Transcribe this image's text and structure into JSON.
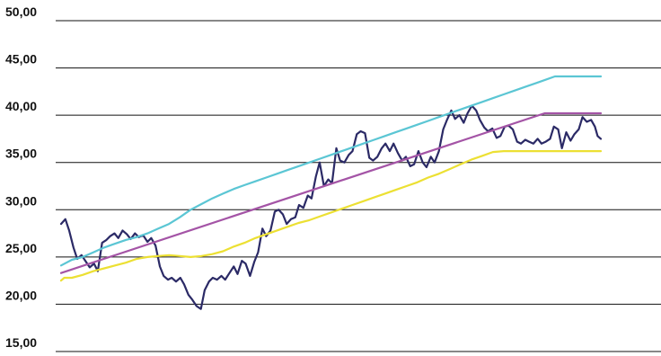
{
  "chart_data": {
    "type": "line",
    "title": "",
    "xlabel": "",
    "ylabel": "",
    "ylim": [
      15,
      50
    ],
    "y_ticks": [
      {
        "value": 50,
        "label": "50,00"
      },
      {
        "value": 45,
        "label": "45,00"
      },
      {
        "value": 40,
        "label": "40,00"
      },
      {
        "value": 35,
        "label": "35,00"
      },
      {
        "value": 30,
        "label": "30,00"
      },
      {
        "value": 25,
        "label": "25,00"
      },
      {
        "value": 20,
        "label": "20,00"
      },
      {
        "value": 15,
        "label": "15,00"
      }
    ],
    "grid": true,
    "legend": "none",
    "x_range": [
      0,
      100
    ],
    "series": [
      {
        "color": "#2b2a66",
        "stroke_width": 2.2,
        "points": [
          [
            0,
            28.5
          ],
          [
            0.8,
            29.0
          ],
          [
            1.5,
            27.8
          ],
          [
            2.3,
            26.0
          ],
          [
            3.0,
            24.8
          ],
          [
            3.8,
            25.2
          ],
          [
            4.5,
            24.6
          ],
          [
            5.3,
            23.9
          ],
          [
            6.1,
            24.3
          ],
          [
            6.8,
            23.5
          ],
          [
            7.6,
            26.5
          ],
          [
            8.4,
            26.8
          ],
          [
            9.1,
            27.2
          ],
          [
            9.9,
            27.5
          ],
          [
            10.6,
            27.0
          ],
          [
            11.4,
            27.8
          ],
          [
            12.2,
            27.4
          ],
          [
            12.9,
            26.9
          ],
          [
            13.7,
            27.5
          ],
          [
            14.4,
            27.1
          ],
          [
            15.2,
            27.3
          ],
          [
            16.0,
            26.6
          ],
          [
            16.7,
            27.0
          ],
          [
            17.5,
            26.2
          ],
          [
            18.3,
            24.0
          ],
          [
            19.0,
            23.0
          ],
          [
            19.8,
            22.6
          ],
          [
            20.5,
            22.8
          ],
          [
            21.3,
            22.4
          ],
          [
            22.1,
            22.8
          ],
          [
            22.8,
            22.1
          ],
          [
            23.6,
            21.0
          ],
          [
            24.3,
            20.5
          ],
          [
            25.1,
            19.8
          ],
          [
            25.9,
            19.5
          ],
          [
            26.6,
            21.5
          ],
          [
            27.4,
            22.4
          ],
          [
            28.1,
            22.8
          ],
          [
            28.9,
            22.6
          ],
          [
            29.7,
            23.0
          ],
          [
            30.4,
            22.6
          ],
          [
            31.2,
            23.3
          ],
          [
            32.0,
            24.0
          ],
          [
            32.7,
            23.2
          ],
          [
            33.5,
            24.6
          ],
          [
            34.2,
            24.3
          ],
          [
            35.0,
            23.0
          ],
          [
            35.8,
            24.5
          ],
          [
            36.5,
            25.5
          ],
          [
            37.3,
            28.0
          ],
          [
            38.0,
            27.2
          ],
          [
            38.8,
            27.8
          ],
          [
            39.6,
            29.8
          ],
          [
            40.3,
            30.0
          ],
          [
            41.1,
            29.5
          ],
          [
            41.8,
            28.5
          ],
          [
            42.6,
            29.0
          ],
          [
            43.4,
            29.2
          ],
          [
            44.1,
            30.5
          ],
          [
            44.9,
            30.2
          ],
          [
            45.7,
            31.5
          ],
          [
            46.4,
            31.2
          ],
          [
            47.2,
            33.5
          ],
          [
            47.9,
            35.0
          ],
          [
            48.7,
            32.5
          ],
          [
            49.5,
            33.2
          ],
          [
            50.2,
            32.8
          ],
          [
            51.0,
            36.5
          ],
          [
            51.7,
            35.2
          ],
          [
            52.5,
            35.0
          ],
          [
            53.3,
            35.8
          ],
          [
            54.0,
            36.2
          ],
          [
            54.8,
            38.0
          ],
          [
            55.5,
            38.3
          ],
          [
            56.3,
            38.1
          ],
          [
            57.1,
            35.5
          ],
          [
            57.8,
            35.2
          ],
          [
            58.6,
            35.6
          ],
          [
            59.4,
            36.5
          ],
          [
            60.1,
            37.0
          ],
          [
            60.9,
            36.2
          ],
          [
            61.6,
            37.0
          ],
          [
            62.4,
            36.0
          ],
          [
            63.2,
            35.2
          ],
          [
            63.9,
            35.6
          ],
          [
            64.7,
            34.6
          ],
          [
            65.4,
            34.8
          ],
          [
            66.2,
            36.2
          ],
          [
            67.0,
            35.0
          ],
          [
            67.7,
            34.5
          ],
          [
            68.5,
            35.6
          ],
          [
            69.2,
            35.0
          ],
          [
            70.0,
            36.2
          ],
          [
            70.8,
            38.5
          ],
          [
            71.5,
            39.5
          ],
          [
            72.3,
            40.5
          ],
          [
            73.0,
            39.6
          ],
          [
            73.8,
            40.0
          ],
          [
            74.6,
            39.2
          ],
          [
            75.3,
            40.2
          ],
          [
            76.1,
            41.0
          ],
          [
            76.9,
            40.5
          ],
          [
            77.6,
            39.5
          ],
          [
            78.4,
            38.7
          ],
          [
            79.1,
            38.3
          ],
          [
            79.9,
            38.6
          ],
          [
            80.7,
            37.6
          ],
          [
            81.4,
            37.8
          ],
          [
            82.2,
            38.8
          ],
          [
            82.9,
            38.9
          ],
          [
            83.7,
            38.5
          ],
          [
            84.5,
            37.2
          ],
          [
            85.2,
            37.0
          ],
          [
            86.0,
            37.4
          ],
          [
            86.7,
            37.2
          ],
          [
            87.5,
            37.0
          ],
          [
            88.3,
            37.5
          ],
          [
            89.0,
            37.0
          ],
          [
            89.8,
            37.2
          ],
          [
            90.6,
            37.5
          ],
          [
            91.3,
            38.8
          ],
          [
            92.1,
            38.5
          ],
          [
            92.8,
            36.5
          ],
          [
            93.6,
            38.2
          ],
          [
            94.4,
            37.3
          ],
          [
            95.1,
            38.0
          ],
          [
            95.9,
            38.5
          ],
          [
            96.6,
            39.8
          ],
          [
            97.4,
            39.3
          ],
          [
            98.2,
            39.5
          ],
          [
            98.9,
            38.8
          ],
          [
            99.4,
            37.8
          ],
          [
            100.0,
            37.5
          ]
        ]
      },
      {
        "color": "#5bc6d4",
        "stroke_width": 2.2,
        "points": [
          [
            0,
            24.1
          ],
          [
            2,
            24.7
          ],
          [
            4,
            25.0
          ],
          [
            6,
            25.5
          ],
          [
            8,
            26.0
          ],
          [
            10,
            26.4
          ],
          [
            12,
            26.8
          ],
          [
            14,
            27.1
          ],
          [
            16,
            27.5
          ],
          [
            18,
            28.0
          ],
          [
            20,
            28.5
          ],
          [
            22,
            29.2
          ],
          [
            24,
            30.0
          ],
          [
            26,
            30.6
          ],
          [
            28,
            31.2
          ],
          [
            30,
            31.7
          ],
          [
            32,
            32.2
          ],
          [
            34,
            32.6
          ],
          [
            36,
            33.0
          ],
          [
            38,
            33.4
          ],
          [
            40,
            33.8
          ],
          [
            42,
            34.2
          ],
          [
            44,
            34.6
          ],
          [
            46,
            35.0
          ],
          [
            48,
            35.4
          ],
          [
            50,
            35.8
          ],
          [
            52,
            36.2
          ],
          [
            54,
            36.6
          ],
          [
            56,
            37.0
          ],
          [
            58,
            37.4
          ],
          [
            60,
            37.8
          ],
          [
            62,
            38.2
          ],
          [
            64,
            38.6
          ],
          [
            66,
            39.0
          ],
          [
            68,
            39.4
          ],
          [
            70,
            39.8
          ],
          [
            72,
            40.2
          ],
          [
            74,
            40.6
          ],
          [
            76,
            41.0
          ],
          [
            78,
            41.4
          ],
          [
            80,
            41.8
          ],
          [
            82,
            42.2
          ],
          [
            84,
            42.6
          ],
          [
            86,
            43.0
          ],
          [
            88,
            43.4
          ],
          [
            90,
            43.8
          ],
          [
            91.5,
            44.1
          ],
          [
            100,
            44.1
          ]
        ]
      },
      {
        "color": "#a454a6",
        "stroke_width": 2.2,
        "points": [
          [
            0,
            23.3
          ],
          [
            89.6,
            40.2
          ],
          [
            100,
            40.2
          ]
        ]
      },
      {
        "color": "#ece033",
        "stroke_width": 2.2,
        "points": [
          [
            0,
            22.5
          ],
          [
            0.6,
            22.8
          ],
          [
            2,
            22.8
          ],
          [
            4,
            23.1
          ],
          [
            6,
            23.5
          ],
          [
            8,
            23.8
          ],
          [
            10,
            24.1
          ],
          [
            12,
            24.4
          ],
          [
            14,
            24.8
          ],
          [
            16,
            25.0
          ],
          [
            18,
            25.1
          ],
          [
            20,
            25.2
          ],
          [
            22,
            25.1
          ],
          [
            24,
            25.0
          ],
          [
            26,
            25.1
          ],
          [
            28,
            25.3
          ],
          [
            30,
            25.6
          ],
          [
            32,
            26.1
          ],
          [
            34,
            26.5
          ],
          [
            36,
            27.0
          ],
          [
            38,
            27.4
          ],
          [
            40,
            27.8
          ],
          [
            42,
            28.2
          ],
          [
            44,
            28.6
          ],
          [
            46,
            28.9
          ],
          [
            48,
            29.3
          ],
          [
            50,
            29.7
          ],
          [
            52,
            30.1
          ],
          [
            54,
            30.5
          ],
          [
            56,
            30.9
          ],
          [
            58,
            31.3
          ],
          [
            60,
            31.7
          ],
          [
            62,
            32.1
          ],
          [
            64,
            32.5
          ],
          [
            66,
            32.9
          ],
          [
            68,
            33.4
          ],
          [
            70,
            33.8
          ],
          [
            72,
            34.3
          ],
          [
            74,
            34.8
          ],
          [
            76,
            35.3
          ],
          [
            78,
            35.7
          ],
          [
            80,
            36.1
          ],
          [
            82,
            36.2
          ],
          [
            84,
            36.2
          ],
          [
            86,
            36.2
          ],
          [
            88,
            36.2
          ],
          [
            90,
            36.2
          ],
          [
            92,
            36.2
          ],
          [
            94,
            36.2
          ],
          [
            96,
            36.2
          ],
          [
            100,
            36.2
          ]
        ]
      }
    ]
  }
}
